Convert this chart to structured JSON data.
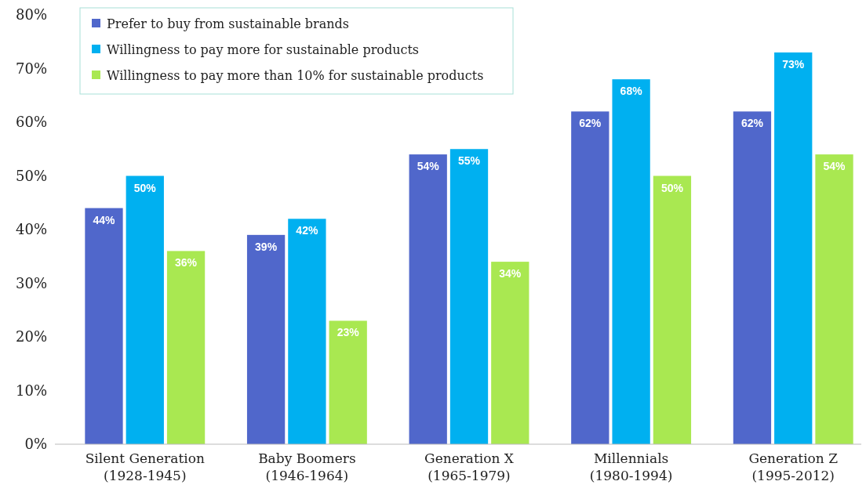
{
  "chart_data": {
    "type": "bar",
    "categories": [
      "Silent Generation\n(1928-1945)",
      "Baby Boomers\n(1946-1964)",
      "Generation X\n(1965-1979)",
      "Millennials\n(1980-1994)",
      "Generation Z\n(1995-2012)"
    ],
    "series": [
      {
        "name": "Prefer to buy from sustainable brands",
        "color": "#5067cb",
        "values": [
          44,
          39,
          54,
          62,
          62
        ],
        "value_labels": [
          "44%",
          "39%",
          "54%",
          "62%",
          "62%"
        ]
      },
      {
        "name": "Willingness to pay more for sustainable products",
        "color": "#00b0f0",
        "values": [
          50,
          42,
          55,
          68,
          73
        ],
        "value_labels": [
          "50%",
          "42%",
          "55%",
          "68%",
          "73%"
        ]
      },
      {
        "name": "Willingness to pay more than 10% for sustainable products",
        "color": "#a9e851",
        "values": [
          36,
          23,
          34,
          50,
          54
        ],
        "value_labels": [
          "36%",
          "23%",
          "34%",
          "50%",
          "54%"
        ]
      }
    ],
    "ylim": [
      0,
      80
    ],
    "yticks": [
      {
        "value": 0,
        "label": "0%"
      },
      {
        "value": 10,
        "label": "10%"
      },
      {
        "value": 20,
        "label": "20%"
      },
      {
        "value": 30,
        "label": "30%"
      },
      {
        "value": 40,
        "label": "40%"
      },
      {
        "value": 50,
        "label": "50%"
      },
      {
        "value": 60,
        "label": "60%"
      },
      {
        "value": 70,
        "label": "70%"
      },
      {
        "value": 80,
        "label": "80%"
      }
    ],
    "grid": false,
    "legend": "top left"
  }
}
